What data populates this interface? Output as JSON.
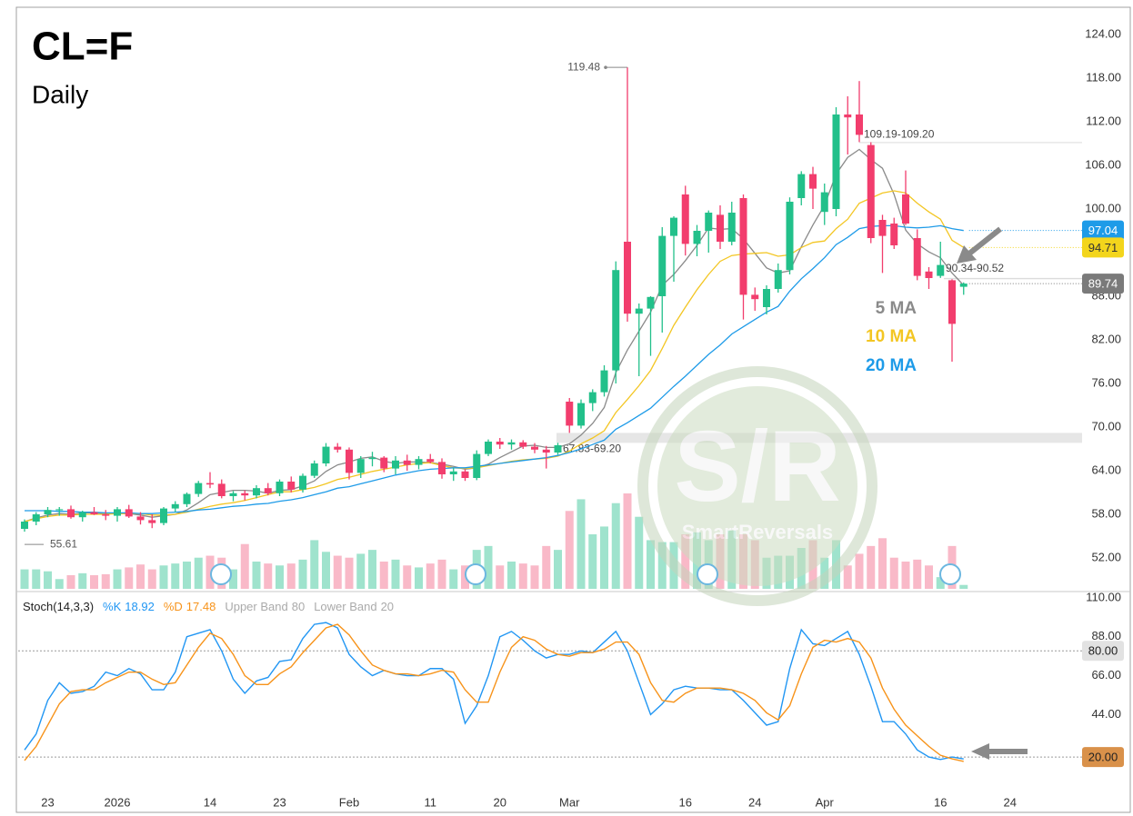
{
  "chart_data": [
    {
      "type": "candlestick",
      "title": "CL=F",
      "subtitle": "Daily",
      "categories": [
        null,
        null,
        "23",
        null,
        null,
        null,
        null,
        null,
        "2026",
        null,
        null,
        null,
        null,
        null,
        null,
        null,
        "14",
        null,
        null,
        null,
        null,
        null,
        "23",
        null,
        null,
        null,
        null,
        null,
        "Feb",
        null,
        null,
        null,
        null,
        null,
        null,
        "11",
        null,
        null,
        null,
        null,
        null,
        "20",
        null,
        null,
        null,
        null,
        null,
        "Mar",
        null,
        null,
        null,
        null,
        null,
        null,
        null,
        null,
        null,
        "16",
        null,
        null,
        null,
        null,
        null,
        "24",
        null,
        null,
        null,
        null,
        null,
        "Apr",
        null,
        null,
        null,
        null,
        null,
        null,
        null,
        null,
        null,
        "16",
        null,
        null,
        null,
        null,
        null,
        "24"
      ],
      "open": [
        56.0,
        57.0,
        58.0,
        58.6,
        58.7,
        57.6,
        58.3,
        58.0,
        57.8,
        58.7,
        57.7,
        57.2,
        56.8,
        58.8,
        59.4,
        60.8,
        62.3,
        62.2,
        60.5,
        60.9,
        60.6,
        61.6,
        60.9,
        62.5,
        61.4,
        63.3,
        65.0,
        67.3,
        66.9,
        63.7,
        65.6,
        65.8,
        64.3,
        65.4,
        64.8,
        65.6,
        65.2,
        63.5,
        63.9,
        63.0,
        66.3,
        68.0,
        67.6,
        67.9,
        67.3,
        66.9,
        66.5,
        73.5,
        70.2,
        73.3,
        74.8,
        77.8,
        95.5,
        85.6,
        86.3,
        88.0,
        96.3,
        102.0,
        95.2,
        97.0,
        99.2,
        95.5,
        101.5,
        88.2,
        86.5,
        89.0,
        91.6,
        101.5,
        104.8,
        99.6,
        100.0,
        113.0,
        113.0,
        108.8,
        98.5,
        98.0,
        102.0,
        96.0,
        91.4,
        90.8,
        90.2,
        89.3,
        null,
        null,
        null,
        null
      ],
      "high": [
        57.3,
        58.3,
        59.0,
        59.0,
        59.2,
        58.5,
        59.0,
        58.6,
        59.0,
        59.3,
        58.3,
        58.0,
        59.0,
        59.8,
        61.0,
        62.6,
        63.8,
        62.8,
        61.2,
        61.3,
        62.0,
        62.3,
        62.8,
        63.2,
        63.6,
        65.4,
        67.8,
        67.8,
        67.2,
        66.0,
        66.6,
        66.0,
        66.0,
        66.2,
        66.0,
        66.3,
        65.7,
        64.4,
        64.2,
        66.8,
        68.3,
        68.5,
        68.3,
        68.2,
        67.8,
        67.4,
        67.83,
        74.0,
        73.8,
        75.2,
        78.5,
        92.8,
        119.48,
        87.0,
        88.0,
        97.5,
        99.0,
        103.2,
        97.8,
        99.8,
        100.5,
        101.0,
        102.0,
        89.2,
        89.5,
        92.5,
        101.6,
        105.2,
        105.8,
        103.5,
        114.0,
        115.5,
        117.6,
        109.19,
        99.2,
        98.8,
        105.3,
        97.2,
        92.0,
        95.5,
        90.34,
        89.9,
        null,
        null,
        null,
        null
      ],
      "low": [
        55.61,
        56.5,
        57.6,
        57.8,
        57.4,
        57.0,
        57.9,
        57.2,
        57.0,
        57.5,
        56.6,
        56.1,
        56.5,
        58.3,
        59.0,
        60.4,
        61.6,
        60.2,
        59.8,
        59.9,
        60.2,
        60.6,
        60.5,
        61.0,
        61.0,
        63.0,
        64.6,
        66.5,
        62.8,
        63.0,
        64.6,
        63.8,
        63.5,
        64.0,
        64.2,
        65.0,
        62.9,
        62.6,
        62.6,
        62.7,
        66.0,
        67.0,
        66.9,
        67.0,
        66.4,
        64.3,
        66.2,
        69.2,
        69.8,
        72.2,
        74.2,
        76.0,
        84.5,
        77.0,
        79.8,
        83.0,
        90.0,
        93.6,
        93.5,
        94.0,
        94.5,
        95.0,
        84.8,
        86.0,
        85.5,
        88.5,
        91.0,
        100.5,
        100.0,
        97.8,
        99.0,
        107.5,
        109.2,
        95.3,
        91.2,
        94.5,
        97.8,
        90.2,
        89.0,
        90.52,
        79.0,
        88.2,
        null,
        null,
        null,
        null
      ],
      "close": [
        57.0,
        58.0,
        58.6,
        58.7,
        57.6,
        58.3,
        58.0,
        57.8,
        58.7,
        57.7,
        57.2,
        56.8,
        58.8,
        59.4,
        60.8,
        62.3,
        62.1,
        60.5,
        60.9,
        60.6,
        61.6,
        60.9,
        62.5,
        61.4,
        63.3,
        65.0,
        67.3,
        66.9,
        63.7,
        65.6,
        65.8,
        64.3,
        65.4,
        64.8,
        65.6,
        65.2,
        63.5,
        63.9,
        63.0,
        66.3,
        68.0,
        67.6,
        67.9,
        67.3,
        66.9,
        66.5,
        67.5,
        70.2,
        73.3,
        74.8,
        77.8,
        91.6,
        85.6,
        86.3,
        87.9,
        96.3,
        98.8,
        95.2,
        97.0,
        99.5,
        95.5,
        99.5,
        88.2,
        87.6,
        89.0,
        91.6,
        101.0,
        104.8,
        102.8,
        102.3,
        113.0,
        112.6,
        110.2,
        96.0,
        96.3,
        95.0,
        98.0,
        90.8,
        90.5,
        92.3,
        84.2,
        89.74,
        null,
        null,
        null,
        null
      ],
      "volume": [
        20,
        20,
        18,
        10,
        14,
        16,
        14,
        15,
        20,
        22,
        25,
        20,
        24,
        26,
        28,
        32,
        34,
        32,
        20,
        46,
        28,
        26,
        24,
        26,
        30,
        50,
        38,
        34,
        32,
        36,
        40,
        28,
        30,
        24,
        22,
        26,
        30,
        20,
        24,
        40,
        44,
        24,
        28,
        26,
        24,
        44,
        40,
        80,
        92,
        56,
        64,
        88,
        98,
        74,
        50,
        48,
        48,
        56,
        58,
        50,
        56,
        60,
        56,
        50,
        32,
        34,
        34,
        42,
        50,
        32,
        50,
        24,
        36,
        44,
        52,
        32,
        28,
        30,
        24,
        12,
        44,
        4,
        null,
        null,
        null,
        null
      ],
      "up_color": "#22c08a",
      "down_color": "#f23d6d",
      "volume_up_color": "#9fe3cd",
      "volume_down_color": "#f9b9c8",
      "series": [
        {
          "name": "5 MA",
          "color": "#8a8a8a",
          "values": [
            57,
            57.5,
            57.9,
            58.1,
            58,
            58.2,
            58.2,
            58.1,
            58.1,
            58.1,
            57.9,
            57.6,
            57.8,
            58,
            58.6,
            59.6,
            60.7,
            61,
            61.3,
            61.3,
            61.2,
            60.9,
            61.3,
            61.4,
            61.9,
            62.6,
            63.9,
            64.8,
            65.2,
            65.7,
            65.9,
            65.3,
            65,
            65.2,
            65.2,
            65.1,
            64.9,
            64.6,
            64.2,
            64.4,
            64.9,
            65.8,
            66.6,
            67.4,
            67.5,
            67.2,
            67.2,
            67.7,
            68.9,
            70.5,
            72.7,
            77.5,
            80.6,
            83.2,
            85.8,
            89.5,
            91,
            92.9,
            95,
            97.4,
            97.2,
            97.3,
            95.9,
            93.9,
            91.9,
            91.2,
            91.5,
            94.8,
            97.8,
            100.5,
            104.8,
            107.1,
            108.2,
            106.8,
            105.6,
            102,
            97.1,
            95.2,
            94.1,
            93.3,
            91.2,
            89.5,
            null,
            null,
            null,
            null
          ]
        },
        {
          "name": "10 MA",
          "color": "#f3c623",
          "values": [
            57,
            57.4,
            57.7,
            57.9,
            57.9,
            58,
            58,
            58,
            58.1,
            58.1,
            58.1,
            57.9,
            57.9,
            58,
            58.3,
            58.7,
            59.1,
            59.4,
            59.6,
            59.9,
            60.3,
            60.7,
            61.1,
            61.1,
            61.4,
            61.7,
            62.2,
            62.8,
            63.1,
            63.5,
            63.9,
            64.2,
            64.5,
            64.8,
            65,
            65.1,
            64.7,
            64.4,
            64.3,
            64.4,
            64.7,
            65,
            65.3,
            65.5,
            65.6,
            65.7,
            66,
            66.7,
            67.7,
            68.5,
            69.5,
            72,
            73.8,
            75.7,
            77.8,
            80.8,
            84,
            86.5,
            88.9,
            91,
            92.8,
            93.6,
            93.8,
            93.9,
            94,
            93.5,
            93.7,
            94.7,
            95.4,
            95.6,
            97.3,
            98.6,
            100.8,
            101.5,
            102.2,
            102.5,
            102.2,
            100.8,
            99.6,
            98.6,
            95.7,
            94.71,
            null,
            null,
            null,
            null
          ]
        },
        {
          "name": "20 MA",
          "color": "#1e9be8",
          "values": [
            58.5,
            58.5,
            58.5,
            58.4,
            58.4,
            58.3,
            58.3,
            58.2,
            58.2,
            58.2,
            58.1,
            58.1,
            58.2,
            58.3,
            58.4,
            58.6,
            58.7,
            58.9,
            59.1,
            59.2,
            59.4,
            59.5,
            59.8,
            60,
            60.3,
            60.7,
            61.1,
            61.6,
            61.8,
            62.2,
            62.6,
            63,
            63.4,
            63.7,
            64,
            64.2,
            64.3,
            64.4,
            64.4,
            64.6,
            64.8,
            65,
            65.2,
            65.4,
            65.6,
            65.8,
            66.1,
            66.5,
            67,
            67.6,
            68.2,
            69.7,
            70.6,
            71.6,
            72.6,
            74.1,
            75.6,
            77,
            78.5,
            80,
            81.3,
            82.8,
            83.8,
            84.8,
            85.8,
            86.6,
            88.7,
            90.4,
            91.8,
            93.3,
            95.1,
            96.1,
            97.3,
            97.6,
            97.7,
            97.7,
            97.5,
            97.4,
            97.5,
            97.7,
            97.3,
            97.04,
            null,
            null,
            null,
            null
          ]
        }
      ],
      "ylim": [
        47.5,
        127.5
      ],
      "yticks": [
        {
          "value": 52,
          "label": "52.00"
        },
        {
          "value": 58,
          "label": "58.00"
        },
        {
          "value": 64,
          "label": "64.00"
        },
        {
          "value": 70,
          "label": "70.00"
        },
        {
          "value": 76,
          "label": "76.00"
        },
        {
          "value": 82,
          "label": "82.00"
        },
        {
          "value": 88,
          "label": "88.00"
        },
        {
          "value": 94,
          "label": "94.00"
        },
        {
          "value": 100,
          "label": "100.00"
        },
        {
          "value": 106,
          "label": "106.00"
        },
        {
          "value": 112,
          "label": "112.00"
        },
        {
          "value": 118,
          "label": "118.00"
        },
        {
          "value": 124,
          "label": "124.00"
        }
      ],
      "annotations": [
        {
          "text": "109.19-109.20",
          "low": 109.19,
          "high": 109.2
        },
        {
          "text": "90.34-90.52",
          "low": 90.34,
          "high": 90.52
        },
        {
          "text": "67.83-69.20",
          "low": 67.83,
          "high": 69.2
        }
      ],
      "watermark": {
        "logo": "S/R",
        "name": "SmartReversals"
      },
      "grid": false
    },
    {
      "type": "line",
      "title": "Stoch(14,3,3)",
      "series": [
        {
          "name": "%K",
          "color": "#2196f3",
          "values": [
            24,
            33,
            52,
            62,
            56,
            57,
            60,
            68,
            66,
            70,
            67,
            58,
            58,
            68,
            88,
            90,
            92,
            80,
            64,
            56,
            63,
            65,
            74,
            75,
            87,
            95,
            96,
            93,
            78,
            71,
            66,
            69,
            67,
            66,
            66,
            70,
            70,
            64,
            39,
            49,
            66,
            88,
            91,
            86,
            80,
            76,
            78,
            78,
            80,
            79,
            85,
            91,
            80,
            62,
            44,
            50,
            58,
            60,
            59,
            59,
            58,
            58,
            52,
            45,
            38,
            40,
            70,
            92,
            84,
            83,
            87,
            91,
            78,
            60,
            40,
            40,
            33,
            24,
            20,
            18.6,
            20,
            18.92,
            null,
            null,
            null,
            null
          ]
        },
        {
          "name": "%D",
          "color": "#f7931a",
          "values": [
            18,
            26,
            38,
            50,
            57,
            58,
            58,
            62,
            65,
            68,
            68,
            64,
            61,
            62,
            72,
            82,
            90,
            87,
            78,
            66,
            61,
            61,
            67,
            71,
            79,
            86,
            93,
            95,
            89,
            80,
            72,
            69,
            67,
            67,
            66,
            67,
            69,
            68,
            58,
            51,
            51,
            68,
            82,
            88,
            86,
            81,
            78,
            77,
            79,
            79,
            81,
            85,
            85,
            78,
            62,
            52,
            51,
            56,
            59,
            59,
            59,
            58,
            56,
            52,
            45,
            41,
            49,
            67,
            82,
            86,
            85,
            87,
            85,
            76,
            59,
            47,
            38,
            32,
            26,
            21,
            19,
            17.48,
            null,
            null,
            null,
            null
          ]
        }
      ],
      "bands": [
        {
          "name": "Upper Band",
          "value": 80,
          "label": "80.00"
        },
        {
          "name": "Lower Band",
          "value": 20,
          "label": "20.00"
        }
      ],
      "ylim": [
        0,
        112
      ],
      "yticks": [
        {
          "value": 44,
          "label": "44.00"
        },
        {
          "value": 66,
          "label": "66.00"
        },
        {
          "value": 88,
          "label": "88.00"
        },
        {
          "value": 110,
          "label": "110.00"
        }
      ],
      "grid": false
    }
  ]
}
